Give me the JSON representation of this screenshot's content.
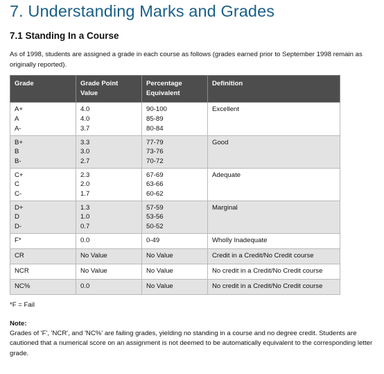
{
  "title": "7. Understanding Marks and Grades",
  "section_heading": "7.1 Standing In a Course",
  "intro": "As of 1998, students are assigned a grade in each course as follows (grades earned prior to September 1998 remain as originally reported).",
  "table": {
    "headers": [
      "Grade",
      "Grade Point Value",
      "Percentage Equivalent",
      "Definition"
    ],
    "rows": [
      {
        "grade": [
          "A+",
          "A",
          "A-"
        ],
        "gpv": [
          "4.0",
          "4.0",
          "3.7"
        ],
        "pct": [
          "90-100",
          "85-89",
          "80-84"
        ],
        "definition": "Excellent"
      },
      {
        "grade": [
          "B+",
          "B",
          "B-"
        ],
        "gpv": [
          "3.3",
          "3.0",
          "2.7"
        ],
        "pct": [
          "77-79",
          "73-76",
          "70-72"
        ],
        "definition": "Good"
      },
      {
        "grade": [
          "C+",
          "C",
          "C-"
        ],
        "gpv": [
          "2.3",
          "2.0",
          "1.7"
        ],
        "pct": [
          "67-69",
          "63-66",
          "60-62"
        ],
        "definition": "Adequate"
      },
      {
        "grade": [
          "D+",
          "D",
          "D-"
        ],
        "gpv": [
          "1.3",
          "1.0",
          "0.7"
        ],
        "pct": [
          "57-59",
          "53-56",
          "50-52"
        ],
        "definition": "Marginal"
      },
      {
        "grade": [
          "F*"
        ],
        "gpv": [
          "0.0"
        ],
        "pct": [
          "0-49"
        ],
        "definition": "Wholly Inadequate"
      },
      {
        "grade": [
          "CR"
        ],
        "gpv": [
          "No Value"
        ],
        "pct": [
          "No Value"
        ],
        "definition": "Credit in a Credit/No Credit course"
      },
      {
        "grade": [
          "NCR"
        ],
        "gpv": [
          "No Value"
        ],
        "pct": [
          "No Value"
        ],
        "definition": "No credit in a Credit/No Credit course"
      },
      {
        "grade": [
          "NC%"
        ],
        "gpv": [
          "0.0"
        ],
        "pct": [
          "No Value"
        ],
        "definition": "No credit in a Credit/No Credit course"
      }
    ]
  },
  "footnote": "*F = Fail",
  "note_heading": "Note",
  "note_heading_colon": ":",
  "note_text": "Grades of 'F', 'NCR', and 'NC%' are failing grades, yielding no standing in a course and no degree credit. Students are cautioned that a numerical score on an assignment is not deemed to be automatically equivalent to the corresponding letter grade.",
  "colors": {
    "title": "#1a5f86",
    "header_bg": "#4d4d4d",
    "shade_row": "#e3e3e3"
  }
}
